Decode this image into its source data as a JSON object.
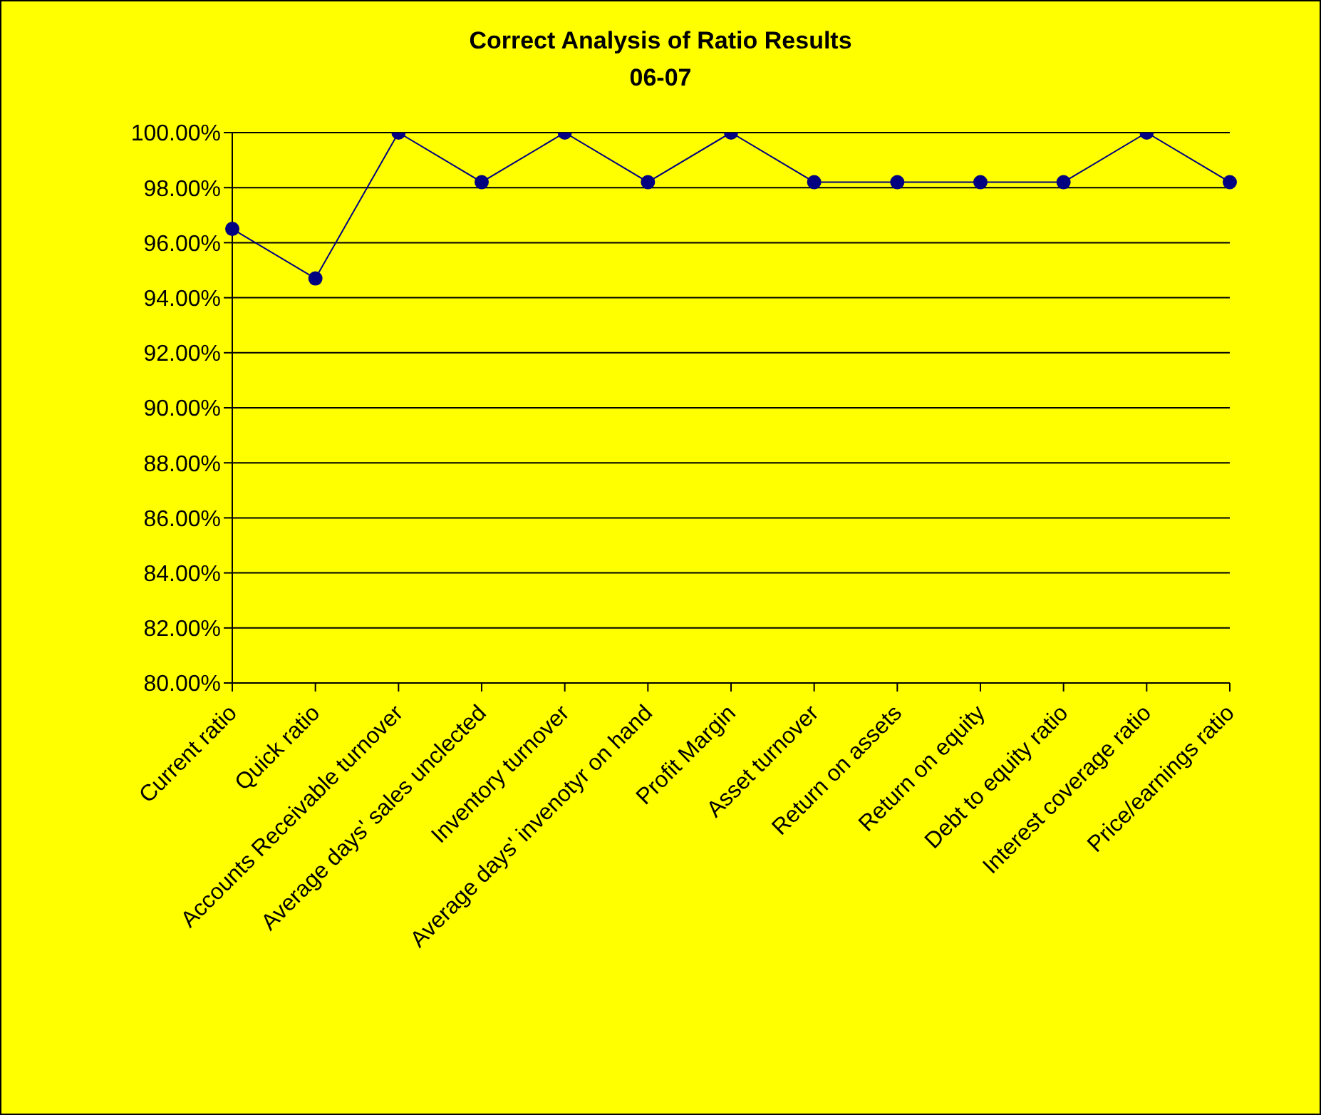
{
  "chart_data": {
    "type": "line",
    "title": "Correct Analysis of Ratio Results",
    "subtitle": "06-07",
    "categories": [
      "Current ratio",
      "Quick ratio",
      "Accounts Receivable turnover",
      "Average days' sales unclected",
      "Inventory turnover",
      "Average days' invenotyr on hand",
      "Profit Margin",
      "Asset turnover",
      "Return on assets",
      "Return on equity",
      "Debt to equity ratio",
      "Interest coverage ratio",
      "Price/earnings ratio"
    ],
    "series": [
      {
        "color": "#000080",
        "values": [
          96.5,
          94.7,
          100,
          98.2,
          100,
          98.2,
          100,
          98.2,
          98.2,
          98.2,
          98.2,
          100,
          98.2
        ]
      }
    ],
    "ylim": [
      80,
      100
    ],
    "yticks": [
      {
        "value": 80,
        "label": "80.00%"
      },
      {
        "value": 82,
        "label": "82.00%"
      },
      {
        "value": 84,
        "label": "84.00%"
      },
      {
        "value": 86,
        "label": "86.00%"
      },
      {
        "value": 88,
        "label": "88.00%"
      },
      {
        "value": 90,
        "label": "90.00%"
      },
      {
        "value": 92,
        "label": "92.00%"
      },
      {
        "value": 94,
        "label": "94.00%"
      },
      {
        "value": 96,
        "label": "96.00%"
      },
      {
        "value": 98,
        "label": "98.00%"
      },
      {
        "value": 100,
        "label": "100.00%"
      }
    ],
    "grid": "y",
    "marker": "circle",
    "line_style": "solid",
    "legend": false
  }
}
